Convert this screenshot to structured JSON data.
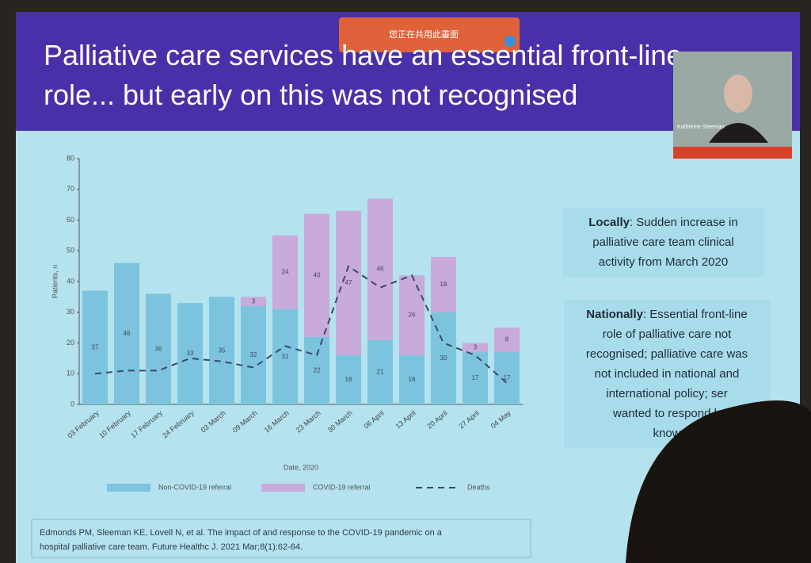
{
  "banner": "您正在共用此畫面",
  "slide": {
    "title": "Palliative care services have an essential front-line role... but early on this was not recognised",
    "presenter": "Katherine Sleeman",
    "local": {
      "lead": "Locally",
      "lines": [
        ": Sudden increase in",
        "palliative care team clinical",
        "activity from March 2020"
      ]
    },
    "national": {
      "lead": "Nationally",
      "lines": [
        ": Essential front-line",
        "role of palliative care not",
        "recognised; palliative care was",
        "not included in national and",
        "international policy; ser",
        "wanted to respond b",
        "know"
      ]
    },
    "citation": [
      "Edmonds PM, Sleeman KE, Lovell N, et al.  The impact of and response to the COVID-19 pandemic on a",
      "hospital palliative care team. Future Healthc J. 2021 Mar;8(1):62-64."
    ]
  },
  "chart_data": {
    "type": "bar",
    "x_label": "Date, 2020",
    "y_label": "Patients, n",
    "categories": [
      "03 February",
      "10 February",
      "17 February",
      "24 February",
      "03 March",
      "09 March",
      "16 March",
      "23 March",
      "30 March",
      "06 April",
      "13 April",
      "20 April",
      "27 April",
      "04 May"
    ],
    "series": [
      {
        "name": "Non-COVID-19 referral",
        "color": "#7cc4de",
        "values": [
          37,
          46,
          36,
          33,
          35,
          32,
          31,
          22,
          16,
          21,
          16,
          30,
          17,
          17
        ]
      },
      {
        "name": "COVID-19 referral",
        "color": "#c8aadb",
        "values": [
          0,
          0,
          0,
          0,
          0,
          3,
          24,
          40,
          47,
          46,
          26,
          18,
          3,
          8
        ]
      },
      {
        "name": "Deaths",
        "type": "line",
        "color": "#3b4866",
        "dashed": true,
        "values": [
          10,
          11,
          11,
          15,
          14,
          12,
          19,
          16,
          45,
          38,
          42,
          20,
          16,
          7
        ]
      }
    ],
    "ylim": [
      0,
      80
    ],
    "yticks": [
      0,
      10,
      20,
      30,
      40,
      50,
      60,
      70,
      80
    ],
    "stacked": true,
    "grid": false
  }
}
